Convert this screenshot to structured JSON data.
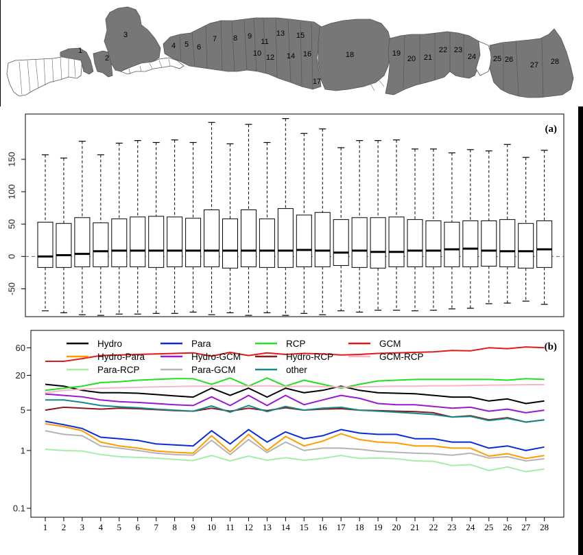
{
  "map": {
    "regions": [
      "1",
      "2",
      "3",
      "4",
      "5",
      "6",
      "7",
      "8",
      "9",
      "10",
      "11",
      "12",
      "13",
      "14",
      "15",
      "16",
      "17",
      "18",
      "19",
      "20",
      "21",
      "22",
      "23",
      "24",
      "25",
      "26",
      "27",
      "28"
    ],
    "shaded_color": "#777777",
    "unshaded_color": "#ffffff"
  },
  "chart_data": [
    {
      "type": "box",
      "panel_label": "(a)",
      "categories": [
        "1",
        "2",
        "3",
        "4",
        "5",
        "6",
        "7",
        "8",
        "9",
        "10",
        "11",
        "12",
        "13",
        "14",
        "15",
        "16",
        "17",
        "18",
        "19",
        "20",
        "21",
        "22",
        "23",
        "24",
        "25",
        "26",
        "27",
        "28"
      ],
      "yticks": [
        "-50",
        "0",
        "50",
        "100",
        "150"
      ],
      "ylim": [
        -93,
        220
      ],
      "boxes": [
        {
          "whisker_low": -84,
          "q1": -17,
          "median": 0,
          "q3": 53,
          "whisker_high": 157
        },
        {
          "whisker_low": -87,
          "q1": -17,
          "median": 2,
          "q3": 51,
          "whisker_high": 152
        },
        {
          "whisker_low": -90,
          "q1": -16,
          "median": 4,
          "q3": 60,
          "whisker_high": 178
        },
        {
          "whisker_low": -91,
          "q1": -16,
          "median": 8,
          "q3": 52,
          "whisker_high": 157
        },
        {
          "whisker_low": -89,
          "q1": -16,
          "median": 9,
          "q3": 58,
          "whisker_high": 175
        },
        {
          "whisker_low": -89,
          "q1": -16,
          "median": 9,
          "q3": 61,
          "whisker_high": 179
        },
        {
          "whisker_low": -88,
          "q1": -17,
          "median": 9,
          "q3": 62,
          "whisker_high": 176
        },
        {
          "whisker_low": -88,
          "q1": -16,
          "median": 9,
          "q3": 61,
          "whisker_high": 180
        },
        {
          "whisker_low": -86,
          "q1": -16,
          "median": 9,
          "q3": 59,
          "whisker_high": 176
        },
        {
          "whisker_low": -90,
          "q1": -16,
          "median": 9,
          "q3": 72,
          "whisker_high": 207
        },
        {
          "whisker_low": -87,
          "q1": -18,
          "median": 9,
          "q3": 58,
          "whisker_high": 174
        },
        {
          "whisker_low": -91,
          "q1": -16,
          "median": 9,
          "q3": 72,
          "whisker_high": 204
        },
        {
          "whisker_low": -87,
          "q1": -17,
          "median": 9,
          "q3": 58,
          "whisker_high": 176
        },
        {
          "whisker_low": -91,
          "q1": -17,
          "median": 9,
          "q3": 74,
          "whisker_high": 213
        },
        {
          "whisker_low": -88,
          "q1": -16,
          "median": 10,
          "q3": 64,
          "whisker_high": 190
        },
        {
          "whisker_low": -90,
          "q1": -16,
          "median": 9,
          "q3": 68,
          "whisker_high": 197
        },
        {
          "whisker_low": -84,
          "q1": -14,
          "median": 6,
          "q3": 57,
          "whisker_high": 168
        },
        {
          "whisker_low": -86,
          "q1": -17,
          "median": 9,
          "q3": 60,
          "whisker_high": 179
        },
        {
          "whisker_low": -83,
          "q1": -18,
          "median": 7,
          "q3": 60,
          "whisker_high": 179
        },
        {
          "whisker_low": -83,
          "q1": -16,
          "median": 7,
          "q3": 61,
          "whisker_high": 180
        },
        {
          "whisker_low": -84,
          "q1": -16,
          "median": 9,
          "q3": 57,
          "whisker_high": 166
        },
        {
          "whisker_low": -83,
          "q1": -16,
          "median": 9,
          "q3": 55,
          "whisker_high": 166
        },
        {
          "whisker_low": -81,
          "q1": -16,
          "median": 11,
          "q3": 53,
          "whisker_high": 160
        },
        {
          "whisker_low": -80,
          "q1": -16,
          "median": 12,
          "q3": 55,
          "whisker_high": 165
        },
        {
          "whisker_low": -73,
          "q1": -15,
          "median": 9,
          "q3": 55,
          "whisker_high": 163
        },
        {
          "whisker_low": -72,
          "q1": -16,
          "median": 8,
          "q3": 57,
          "whisker_high": 173
        },
        {
          "whisker_low": -69,
          "q1": -18,
          "median": 8,
          "q3": 51,
          "whisker_high": 153
        },
        {
          "whisker_low": -74,
          "q1": -17,
          "median": 11,
          "q3": 55,
          "whisker_high": 164
        }
      ],
      "reference_line": 0
    },
    {
      "type": "line",
      "panel_label": "(b)",
      "scale": "log",
      "categories": [
        "1",
        "2",
        "3",
        "4",
        "5",
        "6",
        "7",
        "8",
        "9",
        "10",
        "11",
        "12",
        "13",
        "14",
        "15",
        "16",
        "17",
        "18",
        "19",
        "20",
        "21",
        "22",
        "23",
        "24",
        "25",
        "26",
        "27",
        "28"
      ],
      "yticks": [
        "0.1",
        "1",
        "5",
        "20",
        "60"
      ],
      "ylim": [
        0.07,
        120
      ],
      "series": [
        {
          "name": "Hydro",
          "color": "#000000",
          "values": [
            14,
            13,
            11,
            10,
            10,
            9.8,
            9.3,
            8.8,
            8.4,
            12,
            9,
            12,
            8.4,
            12,
            10,
            11,
            13,
            11,
            10,
            9.8,
            9.6,
            9,
            8.4,
            8.4,
            7.2,
            7.8,
            6.5,
            7.2
          ]
        },
        {
          "name": "Para",
          "color": "#0a2bd8",
          "values": [
            3.2,
            2.8,
            2.4,
            1.7,
            1.6,
            1.5,
            1.3,
            1.25,
            1.2,
            2.2,
            1.3,
            2.3,
            1.4,
            2.1,
            1.6,
            1.8,
            2.3,
            2,
            1.9,
            1.9,
            1.6,
            1.6,
            1.4,
            1.4,
            1.1,
            1.2,
            1,
            1.15
          ]
        },
        {
          "name": "RCP",
          "color": "#22e022",
          "values": [
            11,
            12,
            13,
            15,
            15.5,
            16.5,
            17,
            17.5,
            17.5,
            14,
            18,
            13,
            18,
            13,
            16.5,
            14,
            12,
            14,
            16,
            16.5,
            17,
            17,
            17,
            17,
            17,
            16.5,
            17.5,
            17
          ]
        },
        {
          "name": "GCM",
          "color": "#e01a1a",
          "values": [
            35,
            35,
            39,
            44,
            45,
            46,
            47,
            48,
            49,
            43,
            50,
            44,
            49,
            46,
            48,
            47,
            45,
            46,
            48,
            49,
            50,
            51,
            54,
            53,
            60,
            58,
            62,
            60
          ]
        },
        {
          "name": "Hydro-Para",
          "color": "#ff9c00",
          "values": [
            2.9,
            2.6,
            2.2,
            1.4,
            1.2,
            1.1,
            0.98,
            0.93,
            0.9,
            1.8,
            0.95,
            1.9,
            1,
            1.75,
            1.2,
            1.45,
            1.95,
            1.55,
            1.4,
            1.35,
            1.2,
            1.2,
            1.1,
            1.1,
            0.8,
            0.88,
            0.73,
            0.82
          ]
        },
        {
          "name": "Hydro-GCM",
          "color": "#9b17d0",
          "values": [
            9.5,
            9,
            8.5,
            7.5,
            7,
            6.8,
            6.5,
            6.2,
            6,
            8.5,
            6,
            9,
            6,
            9,
            6.2,
            7.5,
            9,
            8,
            6.5,
            6.2,
            6.2,
            5.8,
            5.4,
            5.6,
            4.8,
            5.2,
            4.5,
            5
          ]
        },
        {
          "name": "Hydro-RCP",
          "color": "#8b1a1a",
          "values": [
            5,
            5.6,
            5.4,
            5.2,
            5.4,
            5.3,
            5.1,
            4.9,
            4.8,
            5.4,
            4.8,
            5.4,
            4.9,
            5.5,
            5,
            5.2,
            5.3,
            5,
            4.9,
            4.8,
            4.7,
            4.5,
            3.8,
            4,
            3.4,
            3.7,
            3.1,
            3.4
          ]
        },
        {
          "name": "GCM-RCP",
          "color": "#ffb3c6",
          "values": [
            10,
            11,
            11.5,
            12,
            12.2,
            12.4,
            12.6,
            12.8,
            13,
            13,
            13.2,
            13,
            13.2,
            12.8,
            13,
            12.8,
            12.5,
            12.6,
            12.8,
            13,
            13,
            13.2,
            13.2,
            13.4,
            13.5,
            13.6,
            13.8,
            13.8
          ]
        },
        {
          "name": "Para-RCP",
          "color": "#a6eda6",
          "values": [
            1.05,
            1,
            0.98,
            0.85,
            0.78,
            0.76,
            0.74,
            0.7,
            0.67,
            0.82,
            0.66,
            0.8,
            0.68,
            0.75,
            0.68,
            0.73,
            0.82,
            0.73,
            0.74,
            0.72,
            0.66,
            0.65,
            0.55,
            0.57,
            0.45,
            0.52,
            0.43,
            0.48
          ]
        },
        {
          "name": "Para-GCM",
          "color": "#b4b4b4",
          "values": [
            2.2,
            1.9,
            1.8,
            1.2,
            1.1,
            1,
            0.9,
            0.85,
            0.83,
            1.5,
            0.85,
            1.55,
            0.92,
            1.4,
            1,
            1.1,
            1.1,
            1.05,
            0.97,
            0.93,
            0.9,
            0.88,
            0.83,
            0.9,
            0.74,
            0.78,
            0.66,
            0.72
          ]
        },
        {
          "name": "other",
          "color": "#138a8a",
          "values": [
            7.5,
            7.5,
            6.8,
            6,
            5.7,
            5.5,
            5.2,
            5,
            4.8,
            5.9,
            4.6,
            6,
            4.7,
            5.8,
            5,
            5.4,
            5.6,
            5,
            4.8,
            4.6,
            4.4,
            4.2,
            3.8,
            3.9,
            3.3,
            3.6,
            3.1,
            3.4
          ]
        }
      ]
    }
  ]
}
